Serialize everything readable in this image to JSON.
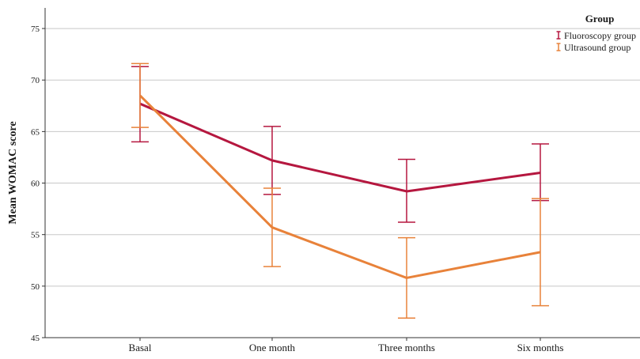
{
  "chart_data": {
    "type": "line",
    "title": "",
    "xlabel": "",
    "ylabel": "Mean WOMAC score",
    "ylim": [
      45,
      77
    ],
    "yticks": [
      45,
      50,
      55,
      60,
      65,
      70,
      75
    ],
    "grid": true,
    "error_bars": true,
    "categories": [
      "Basal",
      "One month",
      "Three months",
      "Six months"
    ],
    "legend": {
      "title": "Group",
      "placement": "top-right"
    },
    "series": [
      {
        "name": "Fluoroscopy group",
        "color": "#b5173f",
        "values": [
          67.7,
          62.2,
          59.2,
          61.0
        ],
        "error_low": [
          64.0,
          58.9,
          56.2,
          58.3
        ],
        "error_high": [
          71.3,
          65.5,
          62.3,
          63.8
        ]
      },
      {
        "name": "Ultrasound group",
        "color": "#e8823a",
        "values": [
          68.5,
          55.7,
          50.8,
          53.3
        ],
        "error_low": [
          65.4,
          51.9,
          46.9,
          48.1
        ],
        "error_high": [
          71.6,
          59.5,
          54.7,
          58.5
        ]
      }
    ]
  }
}
